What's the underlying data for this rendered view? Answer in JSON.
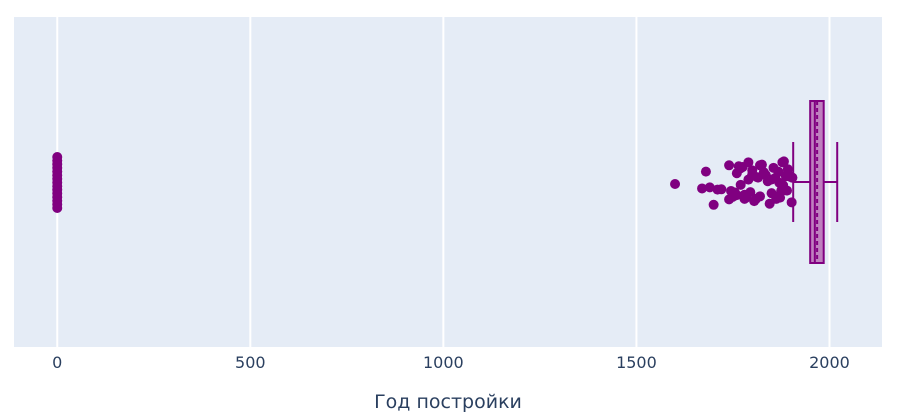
{
  "chart_data": {
    "type": "box",
    "orientation": "horizontal",
    "xlabel": "Год постройки",
    "xlim": [
      -112,
      2136
    ],
    "x_ticks": [
      0,
      500,
      1000,
      1500,
      2000
    ],
    "x_tick_labels": [
      "0",
      "500",
      "1000",
      "1500",
      "2000"
    ],
    "grid": true,
    "legend": "none",
    "series": [
      {
        "box": {
          "whisker_low": 1906,
          "q1": 1950,
          "median": 1962,
          "mean": 1968,
          "q3": 1985,
          "whisker_high": 2020
        },
        "outliers_zero": [
          0,
          0,
          0,
          0,
          0,
          0,
          0,
          0,
          0,
          0,
          0,
          0,
          0,
          0,
          0
        ],
        "outliers": [
          1600,
          1670,
          1680,
          1690,
          1700,
          1710,
          1720,
          1740,
          1740,
          1745,
          1750,
          1755,
          1760,
          1760,
          1765,
          1770,
          1770,
          1775,
          1780,
          1780,
          1785,
          1790,
          1790,
          1795,
          1800,
          1800,
          1800,
          1805,
          1810,
          1812,
          1815,
          1820,
          1820,
          1825,
          1830,
          1835,
          1840,
          1845,
          1850,
          1850,
          1855,
          1860,
          1862,
          1865,
          1868,
          1870,
          1872,
          1875,
          1878,
          1880,
          1882,
          1885,
          1887,
          1890,
          1892,
          1895,
          1897,
          1900,
          1902,
          1904
        ]
      }
    ]
  },
  "colors": {
    "plot_bg": "#e5ecf6",
    "grid": "#ffffff",
    "box_line": "#800080",
    "box_fill": "#bf80bf",
    "points": "#800080",
    "text": "#2a3f5f"
  }
}
